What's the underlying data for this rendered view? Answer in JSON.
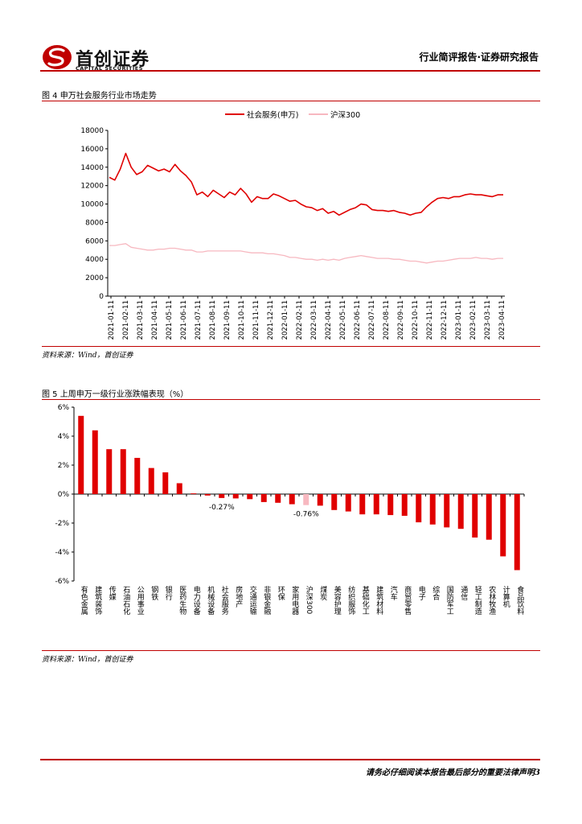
{
  "header": {
    "logo_cn": "首创证券",
    "logo_en": "CAPITAL SECURITIES",
    "title": "行业简评报告·证券研究报告"
  },
  "figure4": {
    "title": "图 4 申万社会服务行业市场走势",
    "source": "资料来源：Wind，首创证券"
  },
  "figure5": {
    "title": "图 5 上周申万一级行业涨跌幅表现（%）",
    "source": "资料来源：Wind，首创证券"
  },
  "footer": {
    "note": "请务必仔细阅读本报告最后部分的重要法律声明3"
  },
  "colors": {
    "accent": "#c00000",
    "series_red": "#e00000",
    "series_pink": "#f7b8c0"
  },
  "chart_data": [
    {
      "type": "line",
      "x_ticks": [
        "2021-01-11",
        "2021-02-11",
        "2021-03-11",
        "2021-04-11",
        "2021-05-11",
        "2021-06-11",
        "2021-07-11",
        "2021-08-11",
        "2021-09-11",
        "2021-10-11",
        "2021-11-11",
        "2021-12-11",
        "2022-01-11",
        "2022-02-11",
        "2022-03-11",
        "2022-04-11",
        "2022-05-11",
        "2022-06-11",
        "2022-07-11",
        "2022-08-11",
        "2022-09-11",
        "2022-10-11",
        "2022-11-11",
        "2022-12-11",
        "2023-01-11",
        "2023-02-11",
        "2023-03-11",
        "2023-04-11"
      ],
      "ylim": [
        0,
        18000
      ],
      "y_ticks": [
        0,
        2000,
        4000,
        6000,
        8000,
        10000,
        12000,
        14000,
        16000,
        18000
      ],
      "legend_position": "top-center",
      "series": [
        {
          "name": "社会服务(申万)",
          "color": "#e00000",
          "values": [
            12900,
            12600,
            13800,
            15500,
            14000,
            13200,
            13500,
            14200,
            13900,
            13600,
            13800,
            13500,
            14300,
            13600,
            13100,
            12400,
            11000,
            11300,
            10800,
            11500,
            11100,
            10700,
            11300,
            11000,
            11700,
            11100,
            10200,
            10800,
            10600,
            10600,
            11100,
            10900,
            10600,
            10300,
            10400,
            10000,
            9700,
            9600,
            9300,
            9500,
            9000,
            9200,
            8800,
            9100,
            9400,
            9600,
            10000,
            9900,
            9400,
            9300,
            9300,
            9200,
            9300,
            9100,
            9000,
            8800,
            9000,
            9100,
            9700,
            10200,
            10600,
            10700,
            10600,
            10800,
            10800,
            11000,
            11100,
            11000,
            11000,
            10900,
            10800,
            11000,
            11000
          ]
        },
        {
          "name": "沪深300",
          "color": "#f7b8c0",
          "values": [
            5500,
            5500,
            5600,
            5700,
            5300,
            5200,
            5100,
            5000,
            5000,
            5100,
            5100,
            5200,
            5200,
            5100,
            5000,
            5000,
            4800,
            4800,
            4900,
            4900,
            4900,
            4900,
            4900,
            4900,
            4900,
            4800,
            4700,
            4700,
            4700,
            4600,
            4600,
            4500,
            4400,
            4200,
            4200,
            4100,
            4000,
            4000,
            3900,
            4000,
            3900,
            4000,
            3900,
            4100,
            4200,
            4300,
            4400,
            4300,
            4200,
            4100,
            4100,
            4100,
            4000,
            4000,
            3900,
            3800,
            3800,
            3700,
            3600,
            3700,
            3800,
            3800,
            3900,
            4000,
            4100,
            4100,
            4100,
            4200,
            4100,
            4100,
            4000,
            4100,
            4100
          ]
        }
      ]
    },
    {
      "type": "bar",
      "ylim": [
        -6,
        6
      ],
      "y_ticks": [
        "6%",
        "4%",
        "2%",
        "0%",
        "-2%",
        "-4%",
        "-6%"
      ],
      "categories": [
        "有色金属",
        "建筑装饰",
        "传媒",
        "石油石化",
        "公用事业",
        "钢铁",
        "银行",
        "医药生物",
        "电力设备",
        "机械设备",
        "社会服务",
        "房地产",
        "交通运输",
        "非银金融",
        "环保",
        "家用电器",
        "沪深300",
        "煤炭",
        "美容护理",
        "纺织服饰",
        "基础化工",
        "建筑材料",
        "汽车",
        "商贸零售",
        "电子",
        "综合",
        "国防军工",
        "通信",
        "轻工制造",
        "农林牧渔",
        "计算机",
        "食品饮料"
      ],
      "values": [
        5.4,
        4.4,
        3.1,
        3.1,
        2.5,
        1.8,
        1.5,
        0.75,
        0.05,
        -0.1,
        -0.27,
        -0.3,
        -0.35,
        -0.55,
        -0.6,
        -0.7,
        -0.76,
        -0.8,
        -1.1,
        -1.2,
        -1.4,
        -1.4,
        -1.45,
        -1.5,
        -1.95,
        -2.1,
        -2.3,
        -2.4,
        -3.0,
        -3.15,
        -4.3,
        -5.25
      ],
      "highlight_index": 16,
      "data_labels": [
        {
          "index": 10,
          "text": "-0.27%"
        },
        {
          "index": 16,
          "text": "-0.76%"
        }
      ]
    }
  ]
}
